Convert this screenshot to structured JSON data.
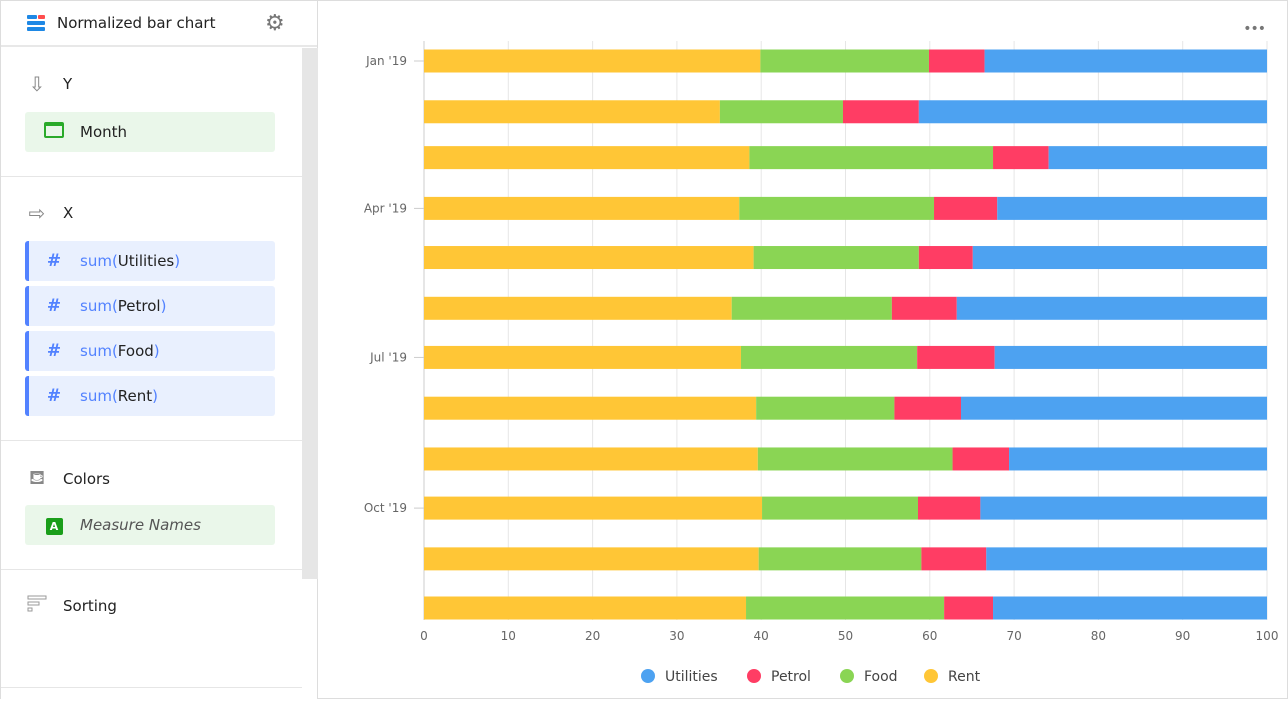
{
  "panel": {
    "title": "Normalized bar chart",
    "y_section": {
      "title": "Y",
      "field": "Month"
    },
    "x_section": {
      "title": "X",
      "fields": [
        {
          "fn": "sum",
          "name": "Utilities"
        },
        {
          "fn": "sum",
          "name": "Petrol"
        },
        {
          "fn": "sum",
          "name": "Food"
        },
        {
          "fn": "sum",
          "name": "Rent"
        }
      ]
    },
    "colors_section": {
      "title": "Colors",
      "field": "Measure Names",
      "badge": "A"
    },
    "sorting_section": {
      "title": "Sorting"
    }
  },
  "chart_data": {
    "type": "bar",
    "orientation": "horizontal",
    "stacking": "normalized-percent",
    "categories": [
      "2019-01",
      "2019-02",
      "2019-03",
      "2019-04",
      "2019-05",
      "2019-06",
      "2019-07",
      "2019-08",
      "2019-09",
      "2019-10",
      "2019-11",
      "2019-12"
    ],
    "y_tick_labels": [
      "Jan '19",
      "Apr '19",
      "Jul '19",
      "Oct '19"
    ],
    "y_tick_categories": [
      "2019-01",
      "2019-04",
      "2019-07",
      "2019-10"
    ],
    "x_ticks": [
      0,
      10,
      20,
      30,
      40,
      50,
      60,
      70,
      80,
      90,
      100
    ],
    "xlim": [
      0,
      100
    ],
    "grid": true,
    "legend_placement": "bottom",
    "series": [
      {
        "name": "Rent",
        "color": "#ffc636",
        "values": [
          39.9,
          35.1,
          38.6,
          37.4,
          39.1,
          36.5,
          37.6,
          39.4,
          39.6,
          40.1,
          39.7,
          38.2
        ]
      },
      {
        "name": "Food",
        "color": "#8ad554",
        "values": [
          20.0,
          14.6,
          28.9,
          23.1,
          19.6,
          19.0,
          20.9,
          16.4,
          23.1,
          18.5,
          19.3,
          23.5
        ]
      },
      {
        "name": "Petrol",
        "color": "#ff3d64",
        "values": [
          6.6,
          9.0,
          6.6,
          7.5,
          6.4,
          7.7,
          9.2,
          7.9,
          6.7,
          7.4,
          7.7,
          5.8
        ]
      },
      {
        "name": "Utilities",
        "color": "#4da2f1",
        "values": [
          33.5,
          41.3,
          25.9,
          32.0,
          34.9,
          36.8,
          32.3,
          36.3,
          30.6,
          34.0,
          33.3,
          32.5
        ]
      }
    ],
    "legend_order": [
      "Utilities",
      "Petrol",
      "Food",
      "Rent"
    ]
  }
}
